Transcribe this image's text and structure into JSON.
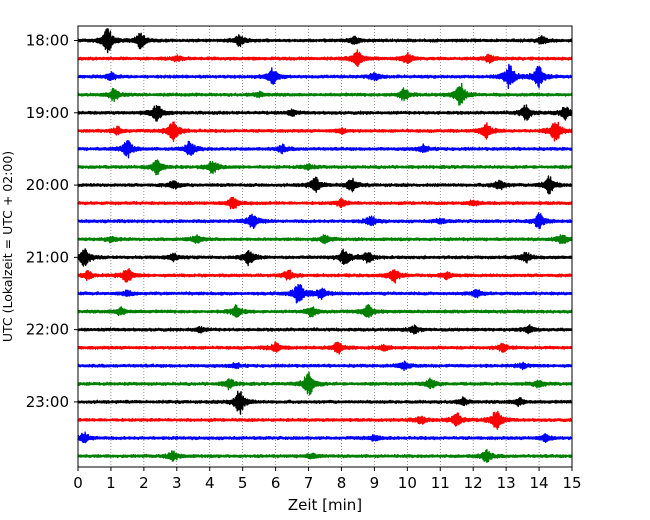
{
  "chart_data": {
    "type": "line",
    "title": "",
    "xlabel": "Zeit  [min]",
    "ylabel": "UTC (Lokalzeit = UTC + 02:00)",
    "xlim": [
      0,
      15
    ],
    "x_ticks": [
      "0",
      "1",
      "2",
      "3",
      "4",
      "5",
      "6",
      "7",
      "8",
      "9",
      "10",
      "11",
      "12",
      "13",
      "14",
      "15"
    ],
    "y_tick_labels": [
      "18:00",
      "19:00",
      "20:00",
      "21:00",
      "22:00",
      "23:00"
    ],
    "grid": "vertical dotted",
    "trace_colors": [
      "#000000",
      "#ff0000",
      "#0000ff",
      "#008000"
    ],
    "series": [
      {
        "start": "18:00",
        "events": [
          [
            0.9,
            1.0
          ],
          [
            1.9,
            0.6
          ],
          [
            4.9,
            0.4
          ],
          [
            8.4,
            0.3
          ],
          [
            14.1,
            0.3
          ]
        ]
      },
      {
        "start": "18:15",
        "events": [
          [
            8.5,
            0.7
          ],
          [
            10.0,
            0.4
          ],
          [
            12.5,
            0.3
          ],
          [
            3.0,
            0.2
          ]
        ]
      },
      {
        "start": "18:30",
        "events": [
          [
            5.9,
            0.7
          ],
          [
            13.1,
            1.0
          ],
          [
            14.0,
            0.9
          ],
          [
            1.0,
            0.3
          ],
          [
            9.0,
            0.3
          ]
        ]
      },
      {
        "start": "18:45",
        "events": [
          [
            1.1,
            0.5
          ],
          [
            9.9,
            0.5
          ],
          [
            11.6,
            1.0
          ],
          [
            5.5,
            0.2
          ]
        ]
      },
      {
        "start": "19:00",
        "events": [
          [
            2.4,
            0.7
          ],
          [
            13.6,
            0.6
          ],
          [
            14.8,
            0.5
          ],
          [
            6.5,
            0.2
          ]
        ]
      },
      {
        "start": "19:15",
        "events": [
          [
            2.9,
            0.9
          ],
          [
            12.4,
            0.6
          ],
          [
            14.5,
            0.9
          ],
          [
            1.2,
            0.3
          ],
          [
            8.0,
            0.2
          ]
        ]
      },
      {
        "start": "19:30",
        "events": [
          [
            1.5,
            0.7
          ],
          [
            3.4,
            0.6
          ],
          [
            6.2,
            0.3
          ],
          [
            10.5,
            0.3
          ]
        ]
      },
      {
        "start": "19:45",
        "events": [
          [
            2.4,
            0.6
          ],
          [
            4.1,
            0.5
          ],
          [
            7.0,
            0.2
          ]
        ]
      },
      {
        "start": "20:00",
        "events": [
          [
            7.2,
            0.6
          ],
          [
            8.3,
            0.5
          ],
          [
            12.8,
            0.4
          ],
          [
            14.3,
            0.7
          ],
          [
            2.9,
            0.3
          ]
        ]
      },
      {
        "start": "20:15",
        "events": [
          [
            4.7,
            0.5
          ],
          [
            8.0,
            0.3
          ],
          [
            12.0,
            0.2
          ]
        ]
      },
      {
        "start": "20:30",
        "events": [
          [
            5.3,
            0.6
          ],
          [
            8.9,
            0.4
          ],
          [
            14.0,
            0.6
          ],
          [
            11.0,
            0.2
          ]
        ]
      },
      {
        "start": "20:45",
        "events": [
          [
            3.6,
            0.3
          ],
          [
            7.5,
            0.3
          ],
          [
            14.7,
            0.4
          ],
          [
            1.0,
            0.2
          ]
        ]
      },
      {
        "start": "21:00",
        "events": [
          [
            0.2,
            0.8
          ],
          [
            5.2,
            0.6
          ],
          [
            8.1,
            0.7
          ],
          [
            8.8,
            0.4
          ],
          [
            13.6,
            0.4
          ],
          [
            2.9,
            0.3
          ]
        ]
      },
      {
        "start": "21:15",
        "events": [
          [
            1.5,
            0.6
          ],
          [
            6.4,
            0.4
          ],
          [
            9.6,
            0.6
          ],
          [
            11.2,
            0.3
          ],
          [
            0.3,
            0.3
          ]
        ]
      },
      {
        "start": "21:30",
        "events": [
          [
            6.7,
            0.9
          ],
          [
            7.4,
            0.5
          ],
          [
            12.1,
            0.3
          ],
          [
            1.5,
            0.2
          ]
        ]
      },
      {
        "start": "21:45",
        "events": [
          [
            4.8,
            0.5
          ],
          [
            7.1,
            0.4
          ],
          [
            8.8,
            0.6
          ],
          [
            1.3,
            0.3
          ]
        ]
      },
      {
        "start": "22:00",
        "events": [
          [
            10.2,
            0.3
          ],
          [
            13.7,
            0.3
          ],
          [
            3.7,
            0.2
          ]
        ]
      },
      {
        "start": "22:15",
        "events": [
          [
            6.0,
            0.4
          ],
          [
            7.9,
            0.5
          ],
          [
            12.9,
            0.3
          ],
          [
            9.3,
            0.2
          ]
        ]
      },
      {
        "start": "22:30",
        "events": [
          [
            9.9,
            0.3
          ],
          [
            13.5,
            0.2
          ],
          [
            4.8,
            0.2
          ]
        ]
      },
      {
        "start": "22:45",
        "events": [
          [
            4.6,
            0.4
          ],
          [
            7.0,
            1.0
          ],
          [
            10.7,
            0.4
          ],
          [
            14.0,
            0.3
          ]
        ]
      },
      {
        "start": "23:00",
        "events": [
          [
            4.9,
            1.0
          ],
          [
            11.7,
            0.3
          ],
          [
            13.4,
            0.3
          ]
        ]
      },
      {
        "start": "23:15",
        "events": [
          [
            11.5,
            0.6
          ],
          [
            12.7,
            0.8
          ],
          [
            10.4,
            0.3
          ]
        ]
      },
      {
        "start": "23:30",
        "events": [
          [
            0.2,
            0.4
          ],
          [
            14.2,
            0.3
          ],
          [
            9.0,
            0.2
          ]
        ]
      },
      {
        "start": "23:45",
        "events": [
          [
            2.9,
            0.4
          ],
          [
            12.4,
            0.5
          ],
          [
            7.1,
            0.2
          ]
        ]
      }
    ]
  }
}
